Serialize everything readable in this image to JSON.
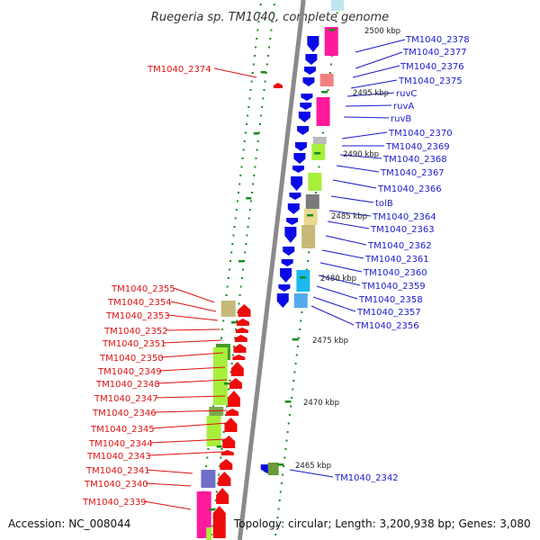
{
  "title": "Ruegeria sp. TM1040, complete genome",
  "accession": "Accession: NC_008044",
  "summary": "Topology: circular; Length: 3,200,938 bp; Genes: 3,080",
  "colors": {
    "forward_gene": "#0a0ae6",
    "reverse_gene": "#ee0b0b",
    "forward_label": "#1a1acc",
    "reverse_label": "#dd1111",
    "backbone": "#8a8a8a",
    "tick": "#1a8a1a"
  },
  "ruler_labels": [
    "2500 kbp",
    "2495 kbp",
    "2490 kbp",
    "2485 kbp",
    "2480 kbp",
    "2475 kbp",
    "2470 kbp",
    "2465 kbp"
  ],
  "forward_strand_labels": [
    "TM1040_2378",
    "TM1040_2377",
    "TM1040_2376",
    "TM1040_2375",
    "ruvC",
    "ruvA",
    "ruvB",
    "TM1040_2370",
    "TM1040_2369",
    "TM1040_2368",
    "TM1040_2367",
    "TM1040_2366",
    "tolB",
    "TM1040_2364",
    "TM1040_2363",
    "TM1040_2362",
    "TM1040_2361",
    "TM1040_2360",
    "TM1040_2359",
    "TM1040_2358",
    "TM1040_2357",
    "TM1040_2356",
    "TM1040_2342"
  ],
  "reverse_strand_labels": [
    "TM1040_2374",
    "TM1040_2355",
    "TM1040_2354",
    "TM1040_2353",
    "TM1040_2352",
    "TM1040_2351",
    "TM1040_2350",
    "TM1040_2349",
    "TM1040_2348",
    "TM1040_2347",
    "TM1040_2346",
    "TM1040_2345",
    "TM1040_2344",
    "TM1040_2343",
    "TM1040_2341",
    "TM1040_2340",
    "TM1040_2339"
  ]
}
